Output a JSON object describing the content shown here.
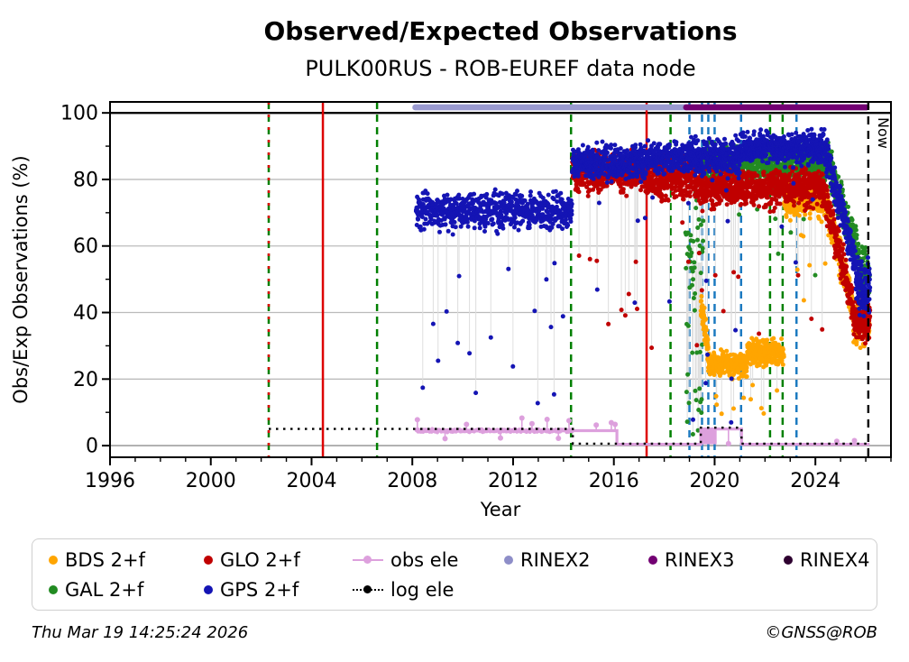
{
  "title": "Observed/Expected Observations",
  "subtitle": "PULK00RUS - ROB-EUREF data node",
  "footer": {
    "timestamp": "Thu Mar 19 14:25:24 2026",
    "credit": "©GNSS@ROB"
  },
  "axes": {
    "xlabel": "Year",
    "ylabel": "Obs/Exp Observations (%)",
    "now_label": "Now"
  },
  "legend": {
    "rows": [
      [
        {
          "label": "BDS 2+f",
          "type": "dot",
          "color": "#FFA500"
        },
        {
          "label": "GLO 2+f",
          "type": "dot",
          "color": "#C00000"
        },
        {
          "label": "obs ele",
          "type": "line",
          "color": "#DDA0DD"
        },
        {
          "label": "RINEX2",
          "type": "dot",
          "color": "#8E8EC8"
        },
        {
          "label": "RINEX3",
          "type": "dot",
          "color": "#730073"
        },
        {
          "label": "RINEX4",
          "type": "dot",
          "color": "#2E0030"
        }
      ],
      [
        {
          "label": "GAL 2+f",
          "type": "dot",
          "color": "#228B22"
        },
        {
          "label": "GPS 2+f",
          "type": "dot",
          "color": "#1414B4"
        },
        {
          "label": "log ele",
          "type": "dotted",
          "color": "#000000"
        }
      ]
    ]
  },
  "chart_data": {
    "type": "scatter",
    "title": "Observed/Expected Observations",
    "subtitle": "PULK00RUS - ROB-EUREF data node",
    "xlabel": "Year",
    "ylabel": "Obs/Exp Observations (%)",
    "xlim": [
      1996,
      2027
    ],
    "ylim": [
      -3.5,
      103.3
    ],
    "x_major_ticks": [
      1996,
      2000,
      2004,
      2008,
      2012,
      2016,
      2020,
      2024
    ],
    "x_minor_step": 1,
    "y_major_ticks": [
      0,
      20,
      40,
      60,
      80,
      100
    ],
    "y_minor_step": 10,
    "grid": {
      "color": "#BBBBBB",
      "zero_color": "#A0A0A0",
      "hundred_color": "#000000"
    },
    "series": [
      {
        "name": "GAL 2+f",
        "color": "#228B22",
        "r": 2.5,
        "segments": [
          {
            "from": 2018.85,
            "to": 2019.55,
            "step": 0.012,
            "mean": 55,
            "spread": 14,
            "outlier_rate": 0.25,
            "outlier": [
              2,
              32
            ]
          },
          {
            "from": 2019.55,
            "to": 2024.5,
            "step": 0.006,
            "mean": 84.5,
            "spread": 3.3,
            "outlier_rate": 0.015,
            "outlier": [
              30,
              74
            ]
          },
          {
            "from": 2024.5,
            "to": 2025.7,
            "step": 0.006,
            "trend": [
              85,
              58
            ],
            "spread": 3.4
          },
          {
            "from": 2025.7,
            "to": 2026.15,
            "step": 0.005,
            "mean": 52,
            "spread": 4.5
          }
        ]
      },
      {
        "name": "BDS 2+f",
        "color": "#FFA500",
        "r": 2.5,
        "segments": [
          {
            "from": 2019.45,
            "to": 2019.75,
            "step": 0.005,
            "trend": [
              42,
              30
            ],
            "spread": 3
          },
          {
            "from": 2019.75,
            "to": 2021.3,
            "step": 0.006,
            "mean": 24.5,
            "spread": 2.2,
            "outlier_rate": 0.02,
            "outlier": [
              9,
              15
            ]
          },
          {
            "from": 2021.3,
            "to": 2022.75,
            "step": 0.006,
            "mean": 28,
            "spread": 2.2,
            "outlier_rate": 0.02,
            "outlier": [
              9,
              20
            ]
          },
          {
            "from": 2022.75,
            "to": 2024.4,
            "step": 0.006,
            "mean": 74,
            "spread": 3.4,
            "outlier_rate": 0.012,
            "outlier": [
              40,
              64
            ]
          },
          {
            "from": 2024.4,
            "to": 2025.5,
            "step": 0.006,
            "trend": [
              73,
              42
            ],
            "spread": 3.4
          },
          {
            "from": 2025.5,
            "to": 2026.15,
            "step": 0.005,
            "mean": 36,
            "spread": 3.5
          }
        ]
      },
      {
        "name": "GLO 2+f",
        "color": "#C00000",
        "r": 2.5,
        "segments": [
          {
            "from": 2014.35,
            "to": 2017.3,
            "step": 0.007,
            "mean": 82,
            "spread": 3.4,
            "outlier_rate": 0.02,
            "outlier": [
              25,
              72
            ]
          },
          {
            "from": 2017.3,
            "to": 2019.3,
            "step": 0.007,
            "mean": 80,
            "spread": 3.8,
            "outlier_rate": 0.025,
            "outlier": [
              20,
              70
            ]
          },
          {
            "from": 2019.3,
            "to": 2024.3,
            "step": 0.006,
            "mean": 77.5,
            "spread": 3.2,
            "outlier_rate": 0.015,
            "outlier": [
              30,
              68
            ]
          },
          {
            "from": 2024.3,
            "to": 2025.5,
            "step": 0.006,
            "trend": [
              77,
              42
            ],
            "spread": 3.4
          },
          {
            "from": 2025.5,
            "to": 2026.17,
            "step": 0.005,
            "mean": 37,
            "spread": 3.5
          }
        ]
      },
      {
        "name": "GPS 2+f",
        "color": "#1414B4",
        "r": 2.5,
        "segments": [
          {
            "from": 2008.15,
            "to": 2014.35,
            "step": 0.009,
            "mean": 70.5,
            "spread": 3.2,
            "outlier_rate": 0.018,
            "outlier": [
              10,
              60
            ],
            "stems": true
          },
          {
            "from": 2014.35,
            "to": 2017.3,
            "step": 0.007,
            "mean": 85,
            "spread": 3,
            "outlier_rate": 0.012,
            "outlier": [
              35,
              76
            ]
          },
          {
            "from": 2017.3,
            "to": 2019.0,
            "step": 0.007,
            "mean": 86.5,
            "spread": 2.8,
            "outlier_rate": 0.015,
            "outlier": [
              20,
              78
            ]
          },
          {
            "from": 2019.0,
            "to": 2021.0,
            "step": 0.006,
            "mean": 86.5,
            "spread": 3,
            "outlier_rate": 0.03,
            "outlier": [
              5,
              78
            ]
          },
          {
            "from": 2021.0,
            "to": 2024.4,
            "step": 0.006,
            "mean": 89.5,
            "spread": 2.8,
            "outlier_rate": 0.008,
            "outlier": [
              55,
              80
            ]
          },
          {
            "from": 2024.4,
            "to": 2025.6,
            "step": 0.006,
            "trend": [
              89,
              55
            ],
            "spread": 3.4
          },
          {
            "from": 2025.6,
            "to": 2026.17,
            "step": 0.005,
            "mean": 48,
            "spread": 5
          }
        ]
      }
    ],
    "step_lines": [
      {
        "name": "obs ele",
        "color": "#DDA0DD",
        "width": 3.2,
        "style": "solid",
        "points": [
          [
            2008.15,
            4.5
          ],
          [
            2016.12,
            4.5
          ],
          [
            2016.12,
            0.4
          ],
          [
            2019.45,
            0.4
          ],
          [
            2019.45,
            5
          ],
          [
            2021.07,
            5
          ],
          [
            2021.07,
            0.4
          ],
          [
            2026.15,
            0.4
          ]
        ],
        "markers": {
          "from": 2008.15,
          "to": 2014.35,
          "step": 0.02,
          "base": 4.5,
          "jitter": 0.55,
          "r": 2.1
        },
        "spikes": [
          [
            2008.2,
            7.8
          ],
          [
            2009.3,
            2.1
          ],
          [
            2010.15,
            6.4
          ],
          [
            2011.5,
            2.3
          ],
          [
            2012.35,
            8.3
          ],
          [
            2012.75,
            6.6
          ],
          [
            2013.35,
            7.9
          ],
          [
            2013.8,
            2.2
          ],
          [
            2014.22,
            7.5
          ],
          [
            2015.3,
            6.2
          ],
          [
            2015.9,
            6.9
          ],
          [
            2016.05,
            6.4
          ],
          [
            2020.55,
            0.6
          ],
          [
            2024.85,
            1.3
          ],
          [
            2025.55,
            1.5
          ]
        ],
        "fill_block": {
          "from": 2019.45,
          "to": 2020.08,
          "y0": 0.4,
          "y1": 5
        }
      },
      {
        "name": "log ele",
        "color": "#000000",
        "width": 2.4,
        "style": "dotted",
        "points": [
          [
            2002.3,
            5
          ],
          [
            2014.37,
            5
          ],
          [
            2014.37,
            0.6
          ],
          [
            2019.45,
            0.6
          ],
          [
            2019.45,
            5.4
          ],
          [
            2021.07,
            5.4
          ],
          [
            2021.07,
            0.6
          ],
          [
            2026.15,
            0.6
          ]
        ]
      }
    ],
    "event_lines": [
      {
        "year": 2002.3,
        "color": "#008000",
        "dash": "8,6"
      },
      {
        "year": 2002.3,
        "color": "#DD0000",
        "dash": "3,11"
      },
      {
        "year": 2004.45,
        "color": "#DD0000",
        "dash": "none"
      },
      {
        "year": 2006.6,
        "color": "#008000",
        "dash": "8,6"
      },
      {
        "year": 2014.3,
        "color": "#008000",
        "dash": "8,6"
      },
      {
        "year": 2017.3,
        "color": "#DD0000",
        "dash": "none"
      },
      {
        "year": 2018.25,
        "color": "#008000",
        "dash": "8,6"
      },
      {
        "year": 2019.0,
        "color": "#1C7AC0",
        "dash": "8,6"
      },
      {
        "year": 2019.5,
        "color": "#1C7AC0",
        "dash": "8,6"
      },
      {
        "year": 2019.75,
        "color": "#1C7AC0",
        "dash": "8,6"
      },
      {
        "year": 2020.0,
        "color": "#1C7AC0",
        "dash": "8,6"
      },
      {
        "year": 2021.05,
        "color": "#1C7AC0",
        "dash": "8,6"
      },
      {
        "year": 2022.2,
        "color": "#008000",
        "dash": "8,6"
      },
      {
        "year": 2022.7,
        "color": "#008000",
        "dash": "8,6"
      },
      {
        "year": 2023.25,
        "color": "#1C7AC0",
        "dash": "8,6"
      }
    ],
    "rinex_bars": [
      {
        "name": "RINEX2",
        "from": 2008.0,
        "to": 2019.0,
        "color": "#9A9AD0"
      },
      {
        "name": "RINEX3",
        "from": 2018.75,
        "to": 2026.15,
        "color": "#730073"
      }
    ],
    "now": {
      "year": 2026.1,
      "label": "Now",
      "color": "#000000",
      "dash": "9,7"
    },
    "legend_position": "bottom",
    "legend_entries": [
      "BDS 2+f",
      "GLO 2+f",
      "obs ele",
      "RINEX2",
      "RINEX3",
      "RINEX4",
      "GAL 2+f",
      "GPS 2+f",
      "log ele"
    ]
  }
}
